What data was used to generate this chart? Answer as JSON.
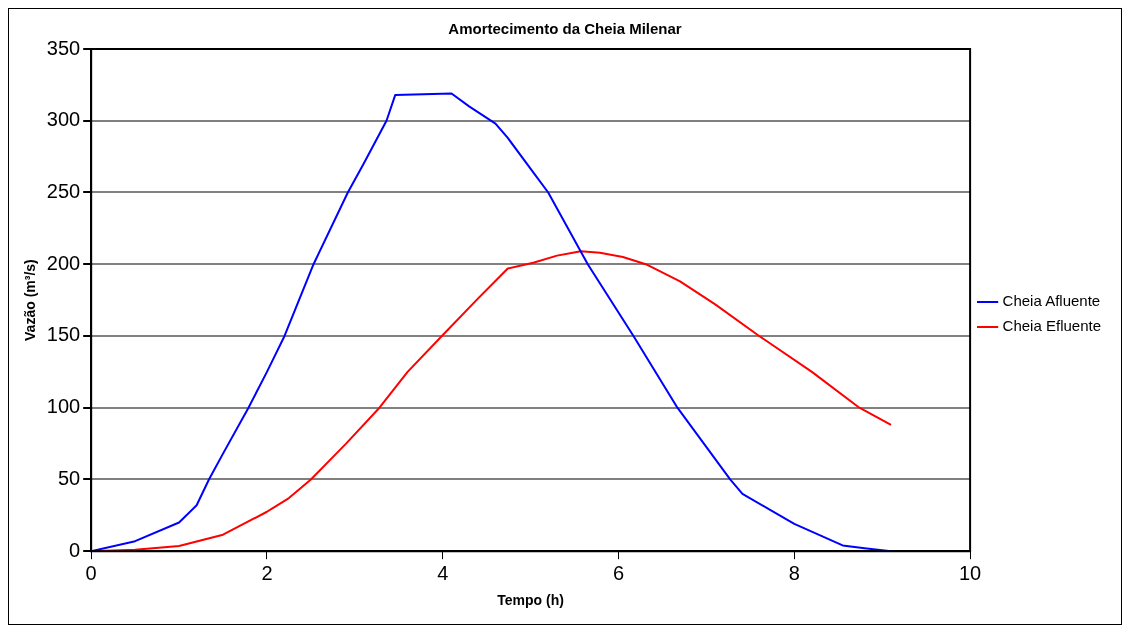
{
  "chart_data": {
    "type": "line",
    "title": "Amortecimento da Cheia Milenar",
    "xlabel": "Tempo (h)",
    "ylabel": "Vazão (m³/s)",
    "xlim": [
      0,
      10
    ],
    "xticks": [
      0,
      2,
      4,
      6,
      8,
      10
    ],
    "ylim": [
      0,
      350
    ],
    "yticks": [
      0,
      50,
      100,
      150,
      200,
      250,
      300,
      350
    ],
    "grid": "y",
    "legend": "right",
    "marker": "none",
    "line_style": "solid",
    "series": [
      {
        "name": "Cheia Afluente",
        "color": "#0000ff",
        "x": [
          0,
          0.5,
          1,
          1.2,
          1.34,
          1.5,
          1.79,
          2,
          2.2,
          2.53,
          2.92,
          3.1,
          3.36,
          3.46,
          4.1,
          4.3,
          4.6,
          4.74,
          5.03,
          5.2,
          5.65,
          6.17,
          6.67,
          7.27,
          7.41,
          8,
          8.55,
          8.8,
          9.1
        ],
        "values": [
          0,
          7,
          20,
          32,
          50,
          68,
          100,
          125,
          150,
          200,
          250,
          270,
          300,
          318,
          319,
          310,
          298,
          288,
          264,
          250,
          200,
          150,
          100,
          50,
          40,
          19,
          4,
          2,
          0
        ]
      },
      {
        "name": "Cheia Efluente",
        "color": "#ff0000",
        "x": [
          0,
          0.5,
          1,
          1.5,
          2,
          2.25,
          2.5,
          2.9,
          3.28,
          3.6,
          3.99,
          4.4,
          4.74,
          5.03,
          5.3,
          5.57,
          5.79,
          6.05,
          6.31,
          6.7,
          7.1,
          7.6,
          8.2,
          8.74,
          9.1
        ],
        "values": [
          0,
          1,
          3.6,
          11.5,
          27.5,
          37,
          50,
          75,
          100,
          125,
          150,
          176,
          197,
          201,
          206,
          209,
          208,
          205,
          200,
          188,
          172,
          150,
          125,
          100,
          88
        ]
      }
    ]
  }
}
